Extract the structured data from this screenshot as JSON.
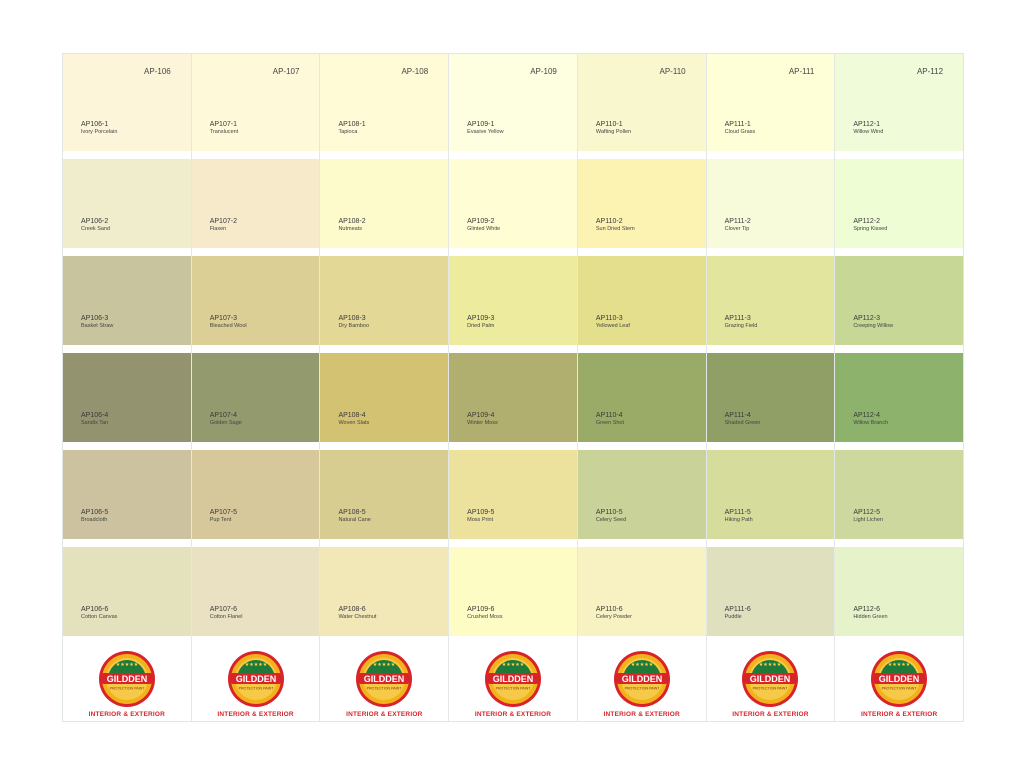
{
  "brand": {
    "name": "GILDDEN",
    "subtitle": "PROTECTION PAINT",
    "tagline": "INTERIOR & EXTERIOR",
    "colors": {
      "green": "#1f7a3a",
      "red": "#d8232a",
      "gold": "#f3b21a"
    }
  },
  "columns": [
    {
      "code": "AP-106",
      "swatches": [
        {
          "id": "AP106-1",
          "name": "Ivory Porcelain",
          "color": "#fdf5da"
        },
        {
          "id": "AP106-2",
          "name": "Creek Sand",
          "color": "#f0edcd"
        },
        {
          "id": "AP106-3",
          "name": "Basket Straw",
          "color": "#c8c59e"
        },
        {
          "id": "AP106-4",
          "name": "Sandix Tan",
          "color": "#93936f"
        },
        {
          "id": "AP106-5",
          "name": "Broadcloth",
          "color": "#cdc29f"
        },
        {
          "id": "AP106-6",
          "name": "Cotton Canvas",
          "color": "#e4e1bd"
        }
      ]
    },
    {
      "code": "AP-107",
      "swatches": [
        {
          "id": "AP107-1",
          "name": "Translucent",
          "color": "#fef9d9"
        },
        {
          "id": "AP107-2",
          "name": "Flaxen",
          "color": "#f6eacb"
        },
        {
          "id": "AP107-3",
          "name": "Bleached Wool",
          "color": "#dccf95"
        },
        {
          "id": "AP107-4",
          "name": "Golden Sage",
          "color": "#939a6d"
        },
        {
          "id": "AP107-5",
          "name": "Pup Tent",
          "color": "#d6c89a"
        },
        {
          "id": "AP107-6",
          "name": "Cotton Flanel",
          "color": "#eae0c2"
        }
      ]
    },
    {
      "code": "AP-108",
      "swatches": [
        {
          "id": "AP108-1",
          "name": "Tapioca",
          "color": "#fffbd7"
        },
        {
          "id": "AP108-2",
          "name": "Nutmeats",
          "color": "#fdfbcc"
        },
        {
          "id": "AP108-3",
          "name": "Dry Bamboo",
          "color": "#e4d897"
        },
        {
          "id": "AP108-4",
          "name": "Woven Slats",
          "color": "#d3c272"
        },
        {
          "id": "AP108-5",
          "name": "Natural Cane",
          "color": "#d8cd90"
        },
        {
          "id": "AP108-6",
          "name": "Water Chestnut",
          "color": "#f2e7b6"
        }
      ]
    },
    {
      "code": "AP-109",
      "swatches": [
        {
          "id": "AP109-1",
          "name": "Evasive Yellow",
          "color": "#fefee0"
        },
        {
          "id": "AP109-2",
          "name": "Glinted White",
          "color": "#fefdd4"
        },
        {
          "id": "AP109-3",
          "name": "Dried Palm",
          "color": "#eceb9e"
        },
        {
          "id": "AP109-4",
          "name": "Winter Moss",
          "color": "#b0af6f"
        },
        {
          "id": "AP109-5",
          "name": "Moss Print",
          "color": "#ece29e"
        },
        {
          "id": "AP109-6",
          "name": "Crushed Moss",
          "color": "#fdfcc4"
        }
      ]
    },
    {
      "code": "AP-110",
      "swatches": [
        {
          "id": "AP110-1",
          "name": "Wafting Pollen",
          "color": "#f8f7ce"
        },
        {
          "id": "AP110-2",
          "name": "Sun Dried Stem",
          "color": "#fcf3b2"
        },
        {
          "id": "AP110-3",
          "name": "Yellowed Leaf",
          "color": "#e3df8c"
        },
        {
          "id": "AP110-4",
          "name": "Green Shot",
          "color": "#9aab68"
        },
        {
          "id": "AP110-5",
          "name": "Celery Seed",
          "color": "#c9d298"
        },
        {
          "id": "AP110-6",
          "name": "Celery Powder",
          "color": "#f8f2c2"
        }
      ]
    },
    {
      "code": "AP-111",
      "swatches": [
        {
          "id": "AP111-1",
          "name": "Cloud Grass",
          "color": "#fefed7"
        },
        {
          "id": "AP111-2",
          "name": "Clover Tip",
          "color": "#f7fbda"
        },
        {
          "id": "AP111-3",
          "name": "Grazing Field",
          "color": "#e2e59e"
        },
        {
          "id": "AP111-4",
          "name": "Shaded Green",
          "color": "#909f66"
        },
        {
          "id": "AP111-5",
          "name": "Hiking Path",
          "color": "#d6dd9c"
        },
        {
          "id": "AP111-6",
          "name": "Puddle",
          "color": "#dfe1be"
        }
      ]
    },
    {
      "code": "AP-112",
      "swatches": [
        {
          "id": "AP112-1",
          "name": "Willow Wind",
          "color": "#effbd9"
        },
        {
          "id": "AP112-2",
          "name": "Spring Kissed",
          "color": "#eefdd4"
        },
        {
          "id": "AP112-3",
          "name": "Creeping Willow",
          "color": "#c6d796"
        },
        {
          "id": "AP112-4",
          "name": "Willow Branch",
          "color": "#8cb26c"
        },
        {
          "id": "AP112-5",
          "name": "Light Lichen",
          "color": "#ccd89e"
        },
        {
          "id": "AP112-6",
          "name": "Hidden Green",
          "color": "#e6f2c9"
        }
      ]
    }
  ]
}
